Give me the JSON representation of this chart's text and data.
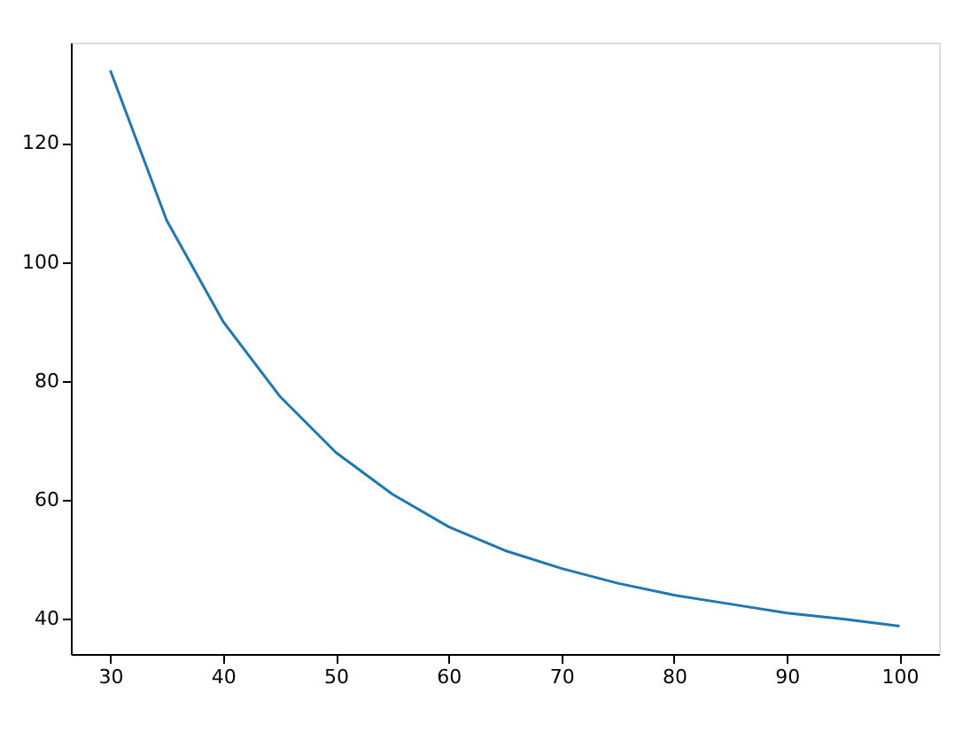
{
  "chart_data": {
    "type": "line",
    "x": [
      30,
      35,
      40,
      45,
      50,
      55,
      60,
      65,
      70,
      75,
      80,
      85,
      90,
      95,
      100
    ],
    "series": [
      {
        "color": "#1f77b4",
        "values": [
          132.2,
          107,
          90,
          77.5,
          68,
          61,
          55.5,
          51.5,
          48.5,
          46,
          44,
          42.5,
          41,
          40,
          38.8
        ]
      }
    ],
    "xlim": [
      26.5,
      103.5
    ],
    "ylim": [
      34.1,
      136.9
    ],
    "xticks": [
      30,
      40,
      50,
      60,
      70,
      80,
      90,
      100
    ],
    "yticks": [
      40,
      60,
      80,
      100,
      120
    ],
    "grid": false,
    "marker": "none",
    "line_style": "solid"
  }
}
